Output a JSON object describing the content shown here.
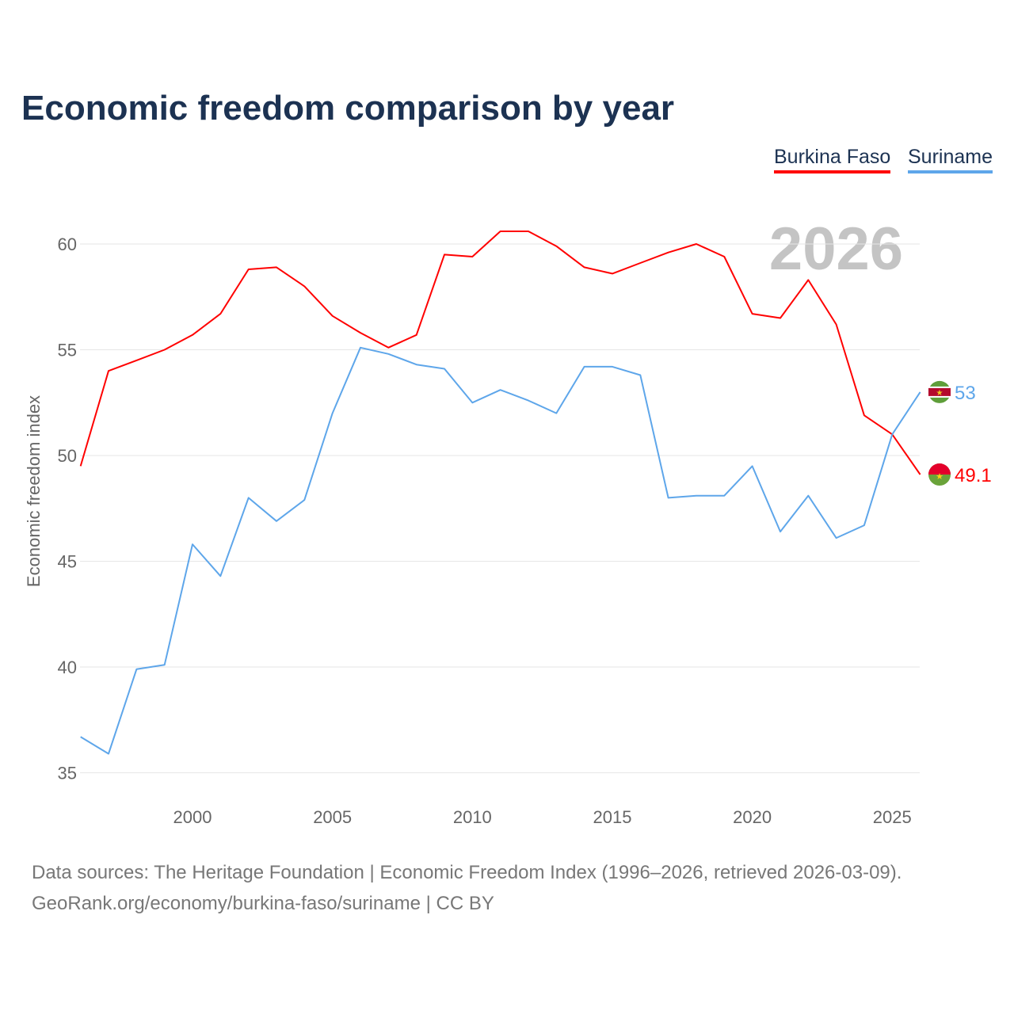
{
  "title": "Economic freedom comparison by year",
  "year_watermark": "2026",
  "footer": {
    "line1": "Data sources: The Heritage Foundation | Economic Freedom Index (1996–2026, retrieved 2026-03-09).",
    "line2": "GeoRank.org/economy/burkina-faso/suriname | CC BY"
  },
  "chart_data": {
    "type": "line",
    "title": "Economic freedom comparison by year",
    "xlabel": "",
    "ylabel": "Economic freedom index",
    "x": [
      1996,
      1997,
      1998,
      1999,
      2000,
      2001,
      2002,
      2003,
      2004,
      2005,
      2006,
      2007,
      2008,
      2009,
      2010,
      2011,
      2012,
      2013,
      2014,
      2015,
      2016,
      2017,
      2018,
      2019,
      2020,
      2021,
      2022,
      2023,
      2024,
      2025,
      2026
    ],
    "xticks": [
      "2000",
      "2005",
      "2010",
      "2015",
      "2020",
      "2025"
    ],
    "yticks": [
      "35",
      "40",
      "45",
      "50",
      "55",
      "60"
    ],
    "xlim": [
      1996,
      2026
    ],
    "ylim": [
      33.5,
      62
    ],
    "grid": true,
    "legend_placement": "top-right",
    "series": [
      {
        "name": "Burkina Faso",
        "color": "#ff0000",
        "end_label": "49.1",
        "values": [
          49.5,
          54.0,
          54.5,
          55.0,
          55.7,
          56.7,
          58.8,
          58.9,
          58.0,
          56.6,
          55.8,
          55.1,
          55.7,
          59.5,
          59.4,
          60.6,
          60.6,
          59.9,
          58.9,
          58.6,
          59.1,
          59.6,
          60.0,
          59.4,
          56.7,
          56.5,
          58.3,
          56.2,
          51.9,
          51.0,
          49.1
        ]
      },
      {
        "name": "Suriname",
        "color": "#5ea6ea",
        "end_label": "53",
        "values": [
          36.7,
          35.9,
          39.9,
          40.1,
          45.8,
          44.3,
          48.0,
          46.9,
          47.9,
          52.0,
          55.1,
          54.8,
          54.3,
          54.1,
          52.5,
          53.1,
          52.6,
          52.0,
          54.2,
          54.2,
          53.8,
          48.0,
          48.1,
          48.1,
          49.5,
          46.4,
          48.1,
          46.1,
          46.7,
          51.0,
          53.0
        ]
      }
    ]
  }
}
